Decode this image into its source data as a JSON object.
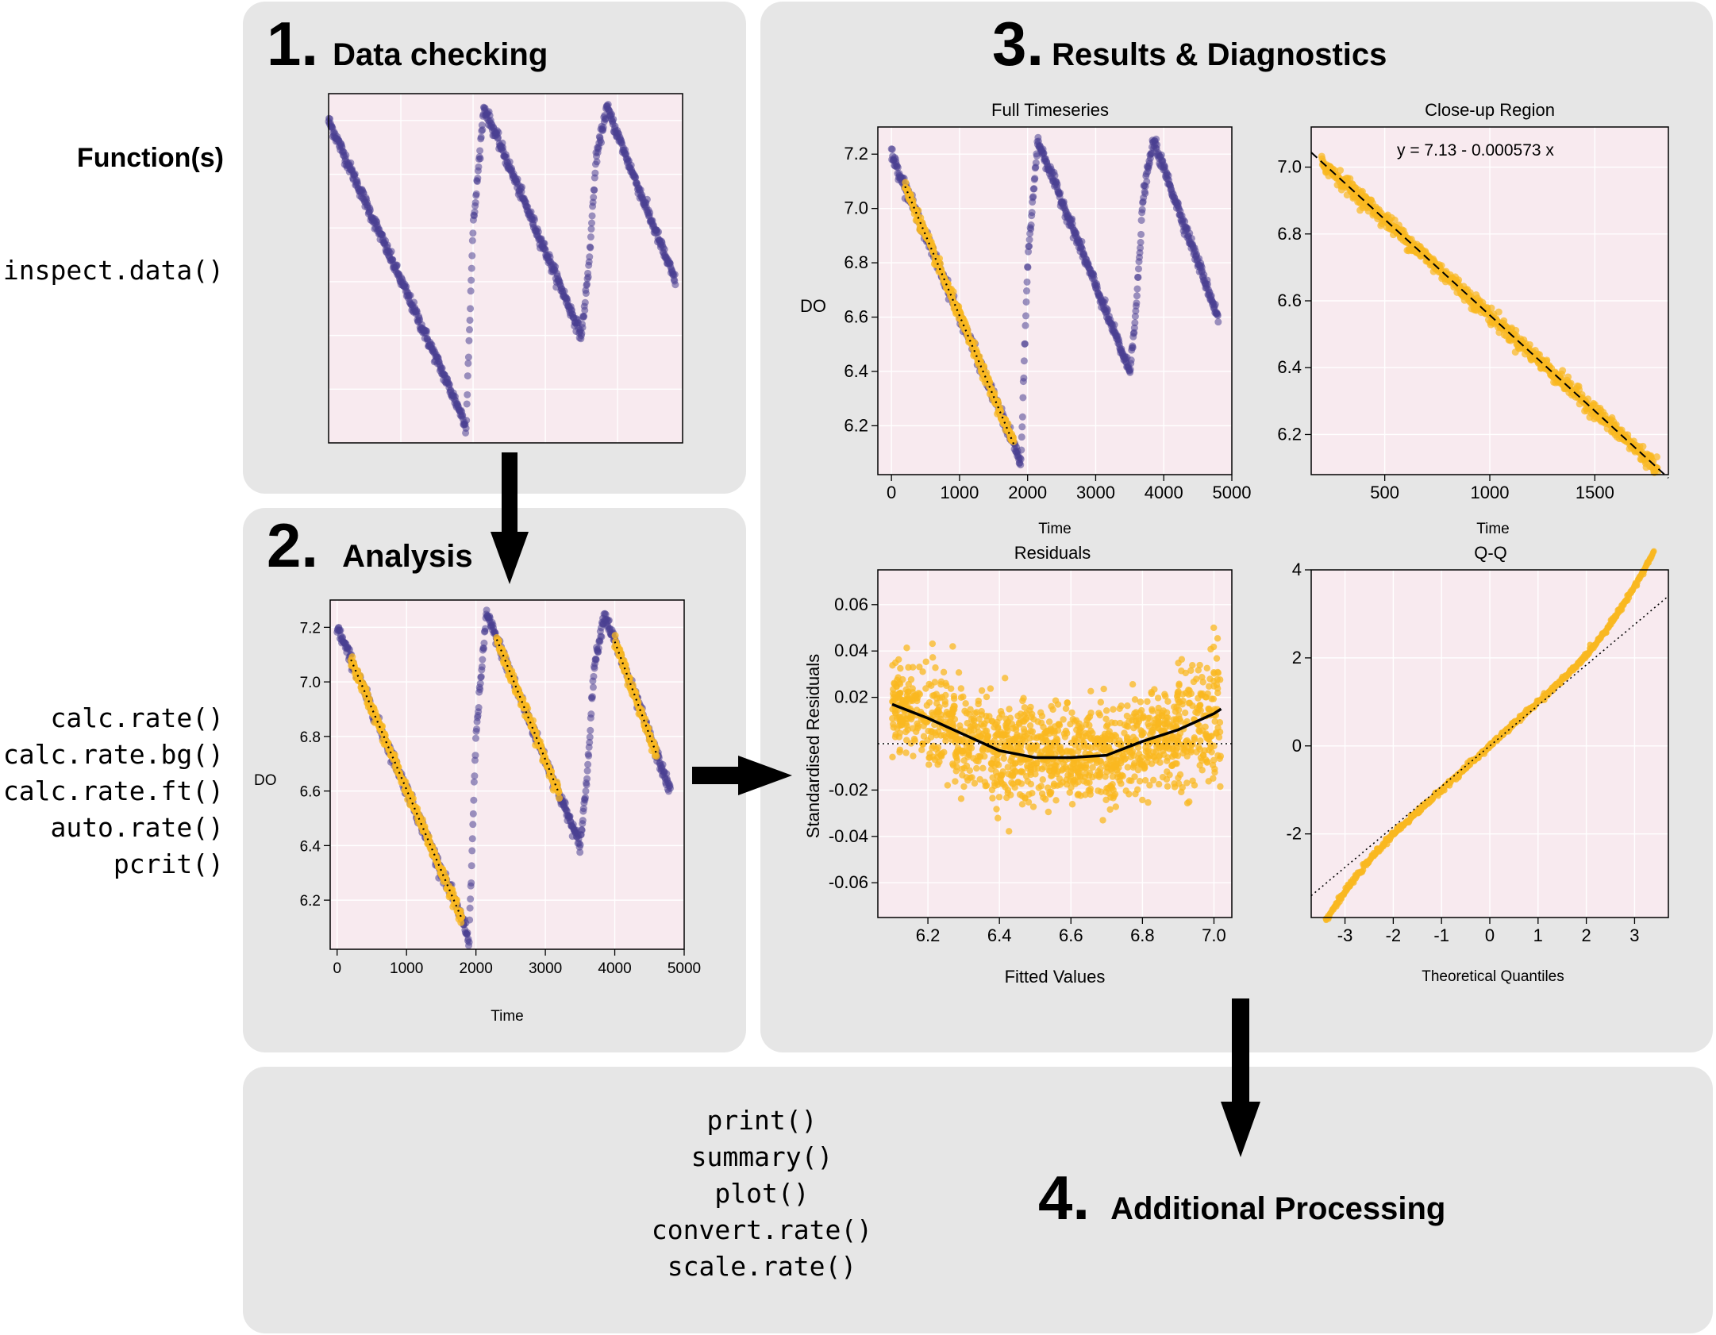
{
  "function_label": "Function(s)",
  "steps": {
    "s1": {
      "number": "1.",
      "label": "Data checking",
      "functions": [
        "inspect.data()"
      ]
    },
    "s2": {
      "number": "2.",
      "label": "Analysis",
      "functions": [
        "calc.rate()",
        "calc.rate.bg()",
        "calc.rate.ft()",
        "auto.rate()",
        "pcrit()"
      ]
    },
    "s3": {
      "number": "3.",
      "label": "Results & Diagnostics"
    },
    "s4": {
      "number": "4.",
      "label": "Additional Processing",
      "functions": [
        "print()",
        "summary()",
        "plot()",
        "convert.rate()",
        "scale.rate()"
      ]
    }
  },
  "colors": {
    "panel": "#e6e6e6",
    "plot_bg": "#f8eaef",
    "series_purple": "#4b3f91",
    "series_yellow": "#f9b820",
    "grid": "#ffffff"
  },
  "chart_data": [
    {
      "id": "inspect",
      "type": "scatter",
      "xlim": [
        0,
        4900
      ],
      "ylim": [
        6.0,
        7.3
      ],
      "series": [
        {
          "color": "purple",
          "x": [
            0,
            1850,
            1900,
            2000,
            2150,
            3500,
            3600,
            3700,
            3850,
            4800
          ],
          "y": [
            7.2,
            6.1,
            6.05,
            6.8,
            7.25,
            6.4,
            6.65,
            7.05,
            7.25,
            6.6
          ]
        }
      ]
    },
    {
      "id": "analysis",
      "type": "scatter",
      "xlabel": "Time",
      "ylabel": "DO",
      "xticks": [
        0,
        1000,
        2000,
        3000,
        4000,
        5000
      ],
      "yticks": [
        6.2,
        6.4,
        6.6,
        6.8,
        7.0,
        7.2
      ],
      "xlim": [
        -100,
        5000
      ],
      "ylim": [
        6.02,
        7.3
      ],
      "series": [
        {
          "color": "purple",
          "x": [
            0,
            1850,
            1900,
            2000,
            2150,
            3500,
            3600,
            3700,
            3850,
            4800
          ],
          "y": [
            7.2,
            6.1,
            6.05,
            6.8,
            7.25,
            6.4,
            6.65,
            7.05,
            7.25,
            6.6
          ]
        },
        {
          "color": "yellow",
          "segments": [
            [
              200,
              1800
            ],
            [
              2300,
              3200
            ],
            [
              4000,
              4600
            ]
          ]
        }
      ]
    },
    {
      "id": "full",
      "type": "scatter",
      "title": "Full Timeseries",
      "xlabel": "Time",
      "ylabel": "DO",
      "xticks": [
        0,
        1000,
        2000,
        3000,
        4000,
        5000
      ],
      "yticks": [
        6.2,
        6.4,
        6.6,
        6.8,
        7.0,
        7.2
      ],
      "xlim": [
        -200,
        5000
      ],
      "ylim": [
        6.02,
        7.3
      ],
      "series": [
        {
          "color": "purple",
          "x": [
            0,
            1850,
            1900,
            2000,
            2150,
            3500,
            3600,
            3700,
            3850,
            4800
          ],
          "y": [
            7.2,
            6.1,
            6.05,
            6.8,
            7.25,
            6.4,
            6.65,
            7.05,
            7.25,
            6.6
          ]
        },
        {
          "color": "yellow",
          "segments": [
            [
              200,
              1800
            ]
          ]
        }
      ]
    },
    {
      "id": "closeup",
      "type": "scatter",
      "title": "Close-up Region",
      "xlabel": "Time",
      "xticks": [
        500,
        1000,
        1500
      ],
      "yticks": [
        6.2,
        6.4,
        6.6,
        6.8,
        7.0
      ],
      "xlim": [
        150,
        1850
      ],
      "ylim": [
        6.08,
        7.12
      ],
      "annotation": "y = 7.13 - 0.000573 x",
      "fit": {
        "intercept": 7.13,
        "slope": -0.000573
      }
    },
    {
      "id": "residuals",
      "type": "scatter",
      "title": "Residuals",
      "xlabel": "Fitted Values",
      "ylabel": "Standardised Residuals",
      "xticks": [
        6.2,
        6.4,
        6.6,
        6.8,
        7.0
      ],
      "yticks": [
        0.06,
        0.04,
        0.02,
        -0.02,
        -0.04,
        -0.06
      ],
      "xlim": [
        6.06,
        7.05
      ],
      "ylim": [
        -0.075,
        0.075
      ],
      "smooth": {
        "x": [
          6.1,
          6.2,
          6.3,
          6.4,
          6.5,
          6.6,
          6.7,
          6.8,
          6.9,
          7.0,
          7.02
        ],
        "y": [
          0.017,
          0.011,
          0.004,
          -0.003,
          -0.006,
          -0.006,
          -0.005,
          0.001,
          0.006,
          0.013,
          0.015
        ]
      }
    },
    {
      "id": "qq",
      "type": "scatter",
      "title": "Q-Q",
      "xlabel": "Theoretical Quantiles",
      "xticks": [
        -3,
        -2,
        -1,
        0,
        1,
        2,
        3
      ],
      "yticks": [
        4,
        2,
        0,
        -2
      ],
      "xlim": [
        -3.7,
        3.7
      ],
      "ylim": [
        -3.9,
        4.0
      ],
      "reference": {
        "slope": 0.92,
        "intercept": 0
      }
    }
  ]
}
